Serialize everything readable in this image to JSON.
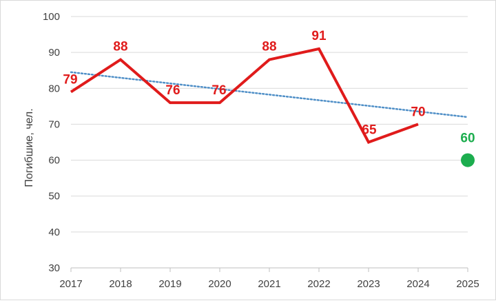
{
  "chart_data": {
    "type": "line",
    "title": "",
    "ylabel": "Погибшие, чел.",
    "xlabel": "",
    "categories": [
      "2017",
      "2018",
      "2019",
      "2020",
      "2021",
      "2022",
      "2023",
      "2024",
      "2025"
    ],
    "ylim": [
      30,
      100
    ],
    "yticks": [
      30,
      40,
      50,
      60,
      70,
      80,
      90,
      100
    ],
    "grid": true,
    "legend": "none",
    "series": [
      {
        "kind": "actual",
        "color": "#e01b1b",
        "x": [
          "2017",
          "2018",
          "2019",
          "2020",
          "2021",
          "2022",
          "2023",
          "2024"
        ],
        "values": [
          79,
          88,
          76,
          76,
          88,
          91,
          65,
          70
        ],
        "labels": [
          "79",
          "88",
          "76",
          "76",
          "88",
          "91",
          "65",
          "70"
        ]
      },
      {
        "kind": "target",
        "color": "#1cad4e",
        "x": [
          "2025"
        ],
        "values": [
          60
        ],
        "labels": [
          "60"
        ]
      },
      {
        "kind": "linear-trend",
        "color": "#4f8fc7",
        "style": "dotted",
        "x": [
          "2017",
          "2025"
        ],
        "values": [
          84.5,
          72
        ]
      }
    ]
  }
}
